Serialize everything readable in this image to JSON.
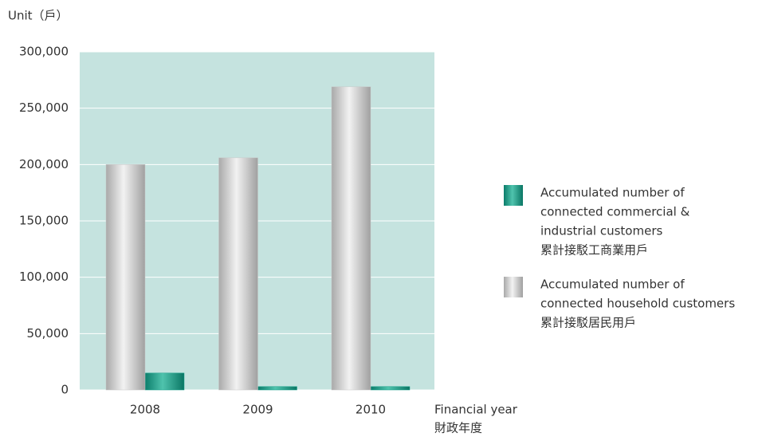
{
  "chart_data": {
    "type": "bar",
    "y_label": "Unit（戶）",
    "x_label": [
      "Financial year",
      "財政年度"
    ],
    "categories": [
      "2008",
      "2009",
      "2010"
    ],
    "series": [
      {
        "name": [
          "Accumulated number of",
          "connected commercial &",
          "industrial customers",
          "累計接駁工商業用戶"
        ],
        "color": "#17a08a",
        "values": [
          15000,
          3000,
          3000
        ]
      },
      {
        "name": [
          "Accumulated number of",
          "connected household customers",
          "累計接駁居民用戶"
        ],
        "color": "#c8c8c8",
        "values": [
          200000,
          206000,
          269000
        ]
      }
    ],
    "ylim": [
      0,
      300000
    ],
    "yticks": [
      0,
      {
        "value": 50000,
        "label": "50,000"
      },
      {
        "value": 100000,
        "label": "100,000"
      },
      {
        "value": 150000,
        "label": "150,000"
      },
      {
        "value": 200000,
        "label": "200,000"
      },
      {
        "value": 250000,
        "label": "250,000"
      },
      {
        "value": 300000,
        "label": "300,000"
      }
    ],
    "grid": true
  }
}
